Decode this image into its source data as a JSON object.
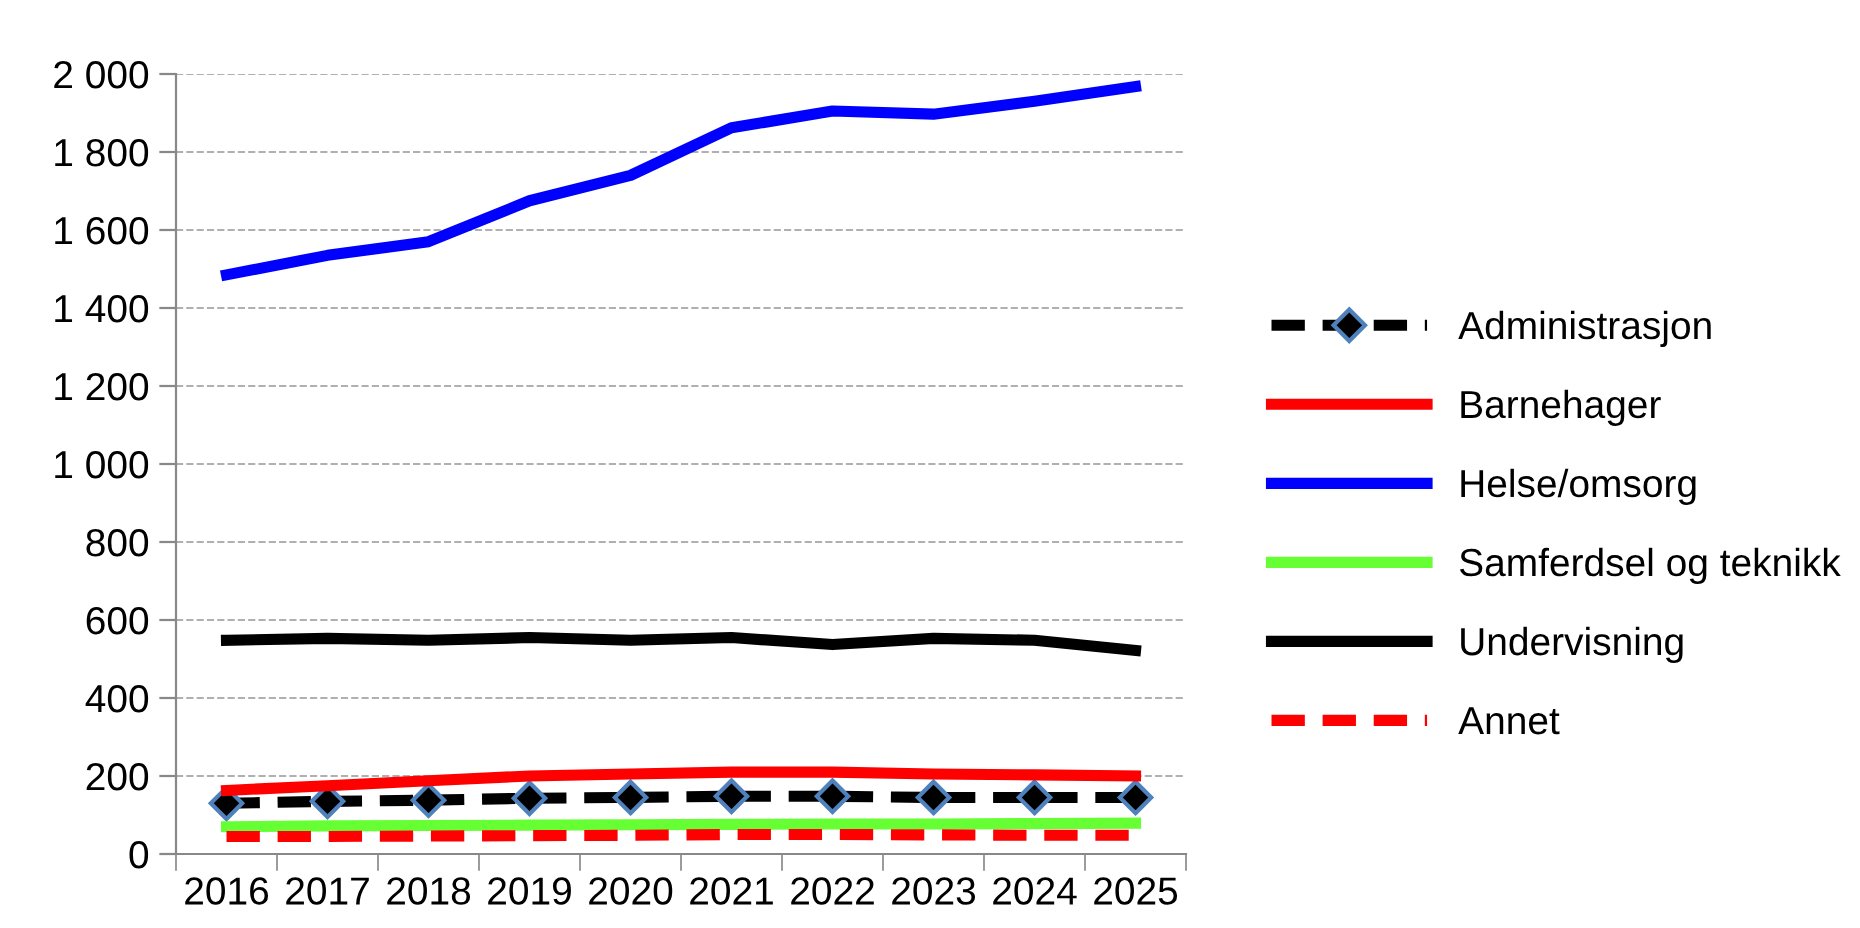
{
  "chart_data": {
    "type": "line",
    "categories": [
      "2016",
      "2017",
      "2018",
      "2019",
      "2020",
      "2021",
      "2022",
      "2023",
      "2024",
      "2025"
    ],
    "ylim": [
      0,
      2000
    ],
    "yticks": [
      0,
      200,
      400,
      600,
      800,
      {
        "value": 1000,
        "label": "1 000"
      },
      {
        "value": 1200,
        "label": "1 200"
      },
      {
        "value": 1400,
        "label": "1 400"
      },
      {
        "value": 1600,
        "label": "1 600"
      },
      {
        "value": 1800,
        "label": "1 800"
      },
      {
        "value": 2000,
        "label": "2 000"
      }
    ],
    "grid": "y",
    "legend": "right",
    "series": [
      {
        "name": "Administrasjon",
        "color": "#000000",
        "line_style": "dashed",
        "marker": "diamond",
        "values": [
          130,
          135,
          138,
          143,
          145,
          148,
          148,
          145,
          145,
          145
        ]
      },
      {
        "name": "Barnehager",
        "color": "#ff0000",
        "line_style": "solid",
        "values": [
          163,
          175,
          188,
          200,
          205,
          210,
          210,
          205,
          203,
          200
        ]
      },
      {
        "name": "Helse/omsorg",
        "color": "#0000ff",
        "line_style": "solid",
        "values": [
          1485,
          1535,
          1570,
          1675,
          1740,
          1862,
          1905,
          1897,
          1930,
          1968
        ]
      },
      {
        "name": "Samferdsel og teknikk",
        "color": "#66ff33",
        "line_style": "solid",
        "values": [
          70,
          72,
          73,
          74,
          75,
          76,
          77,
          77,
          78,
          79
        ]
      },
      {
        "name": "Undervisning",
        "color": "#000000",
        "line_style": "solid",
        "values": [
          548,
          553,
          548,
          555,
          548,
          555,
          537,
          553,
          548,
          522
        ]
      },
      {
        "name": "Annet",
        "color": "#ff0000",
        "line_style": "dashed",
        "values": [
          45,
          45,
          46,
          47,
          48,
          50,
          50,
          49,
          48,
          48
        ]
      }
    ]
  }
}
